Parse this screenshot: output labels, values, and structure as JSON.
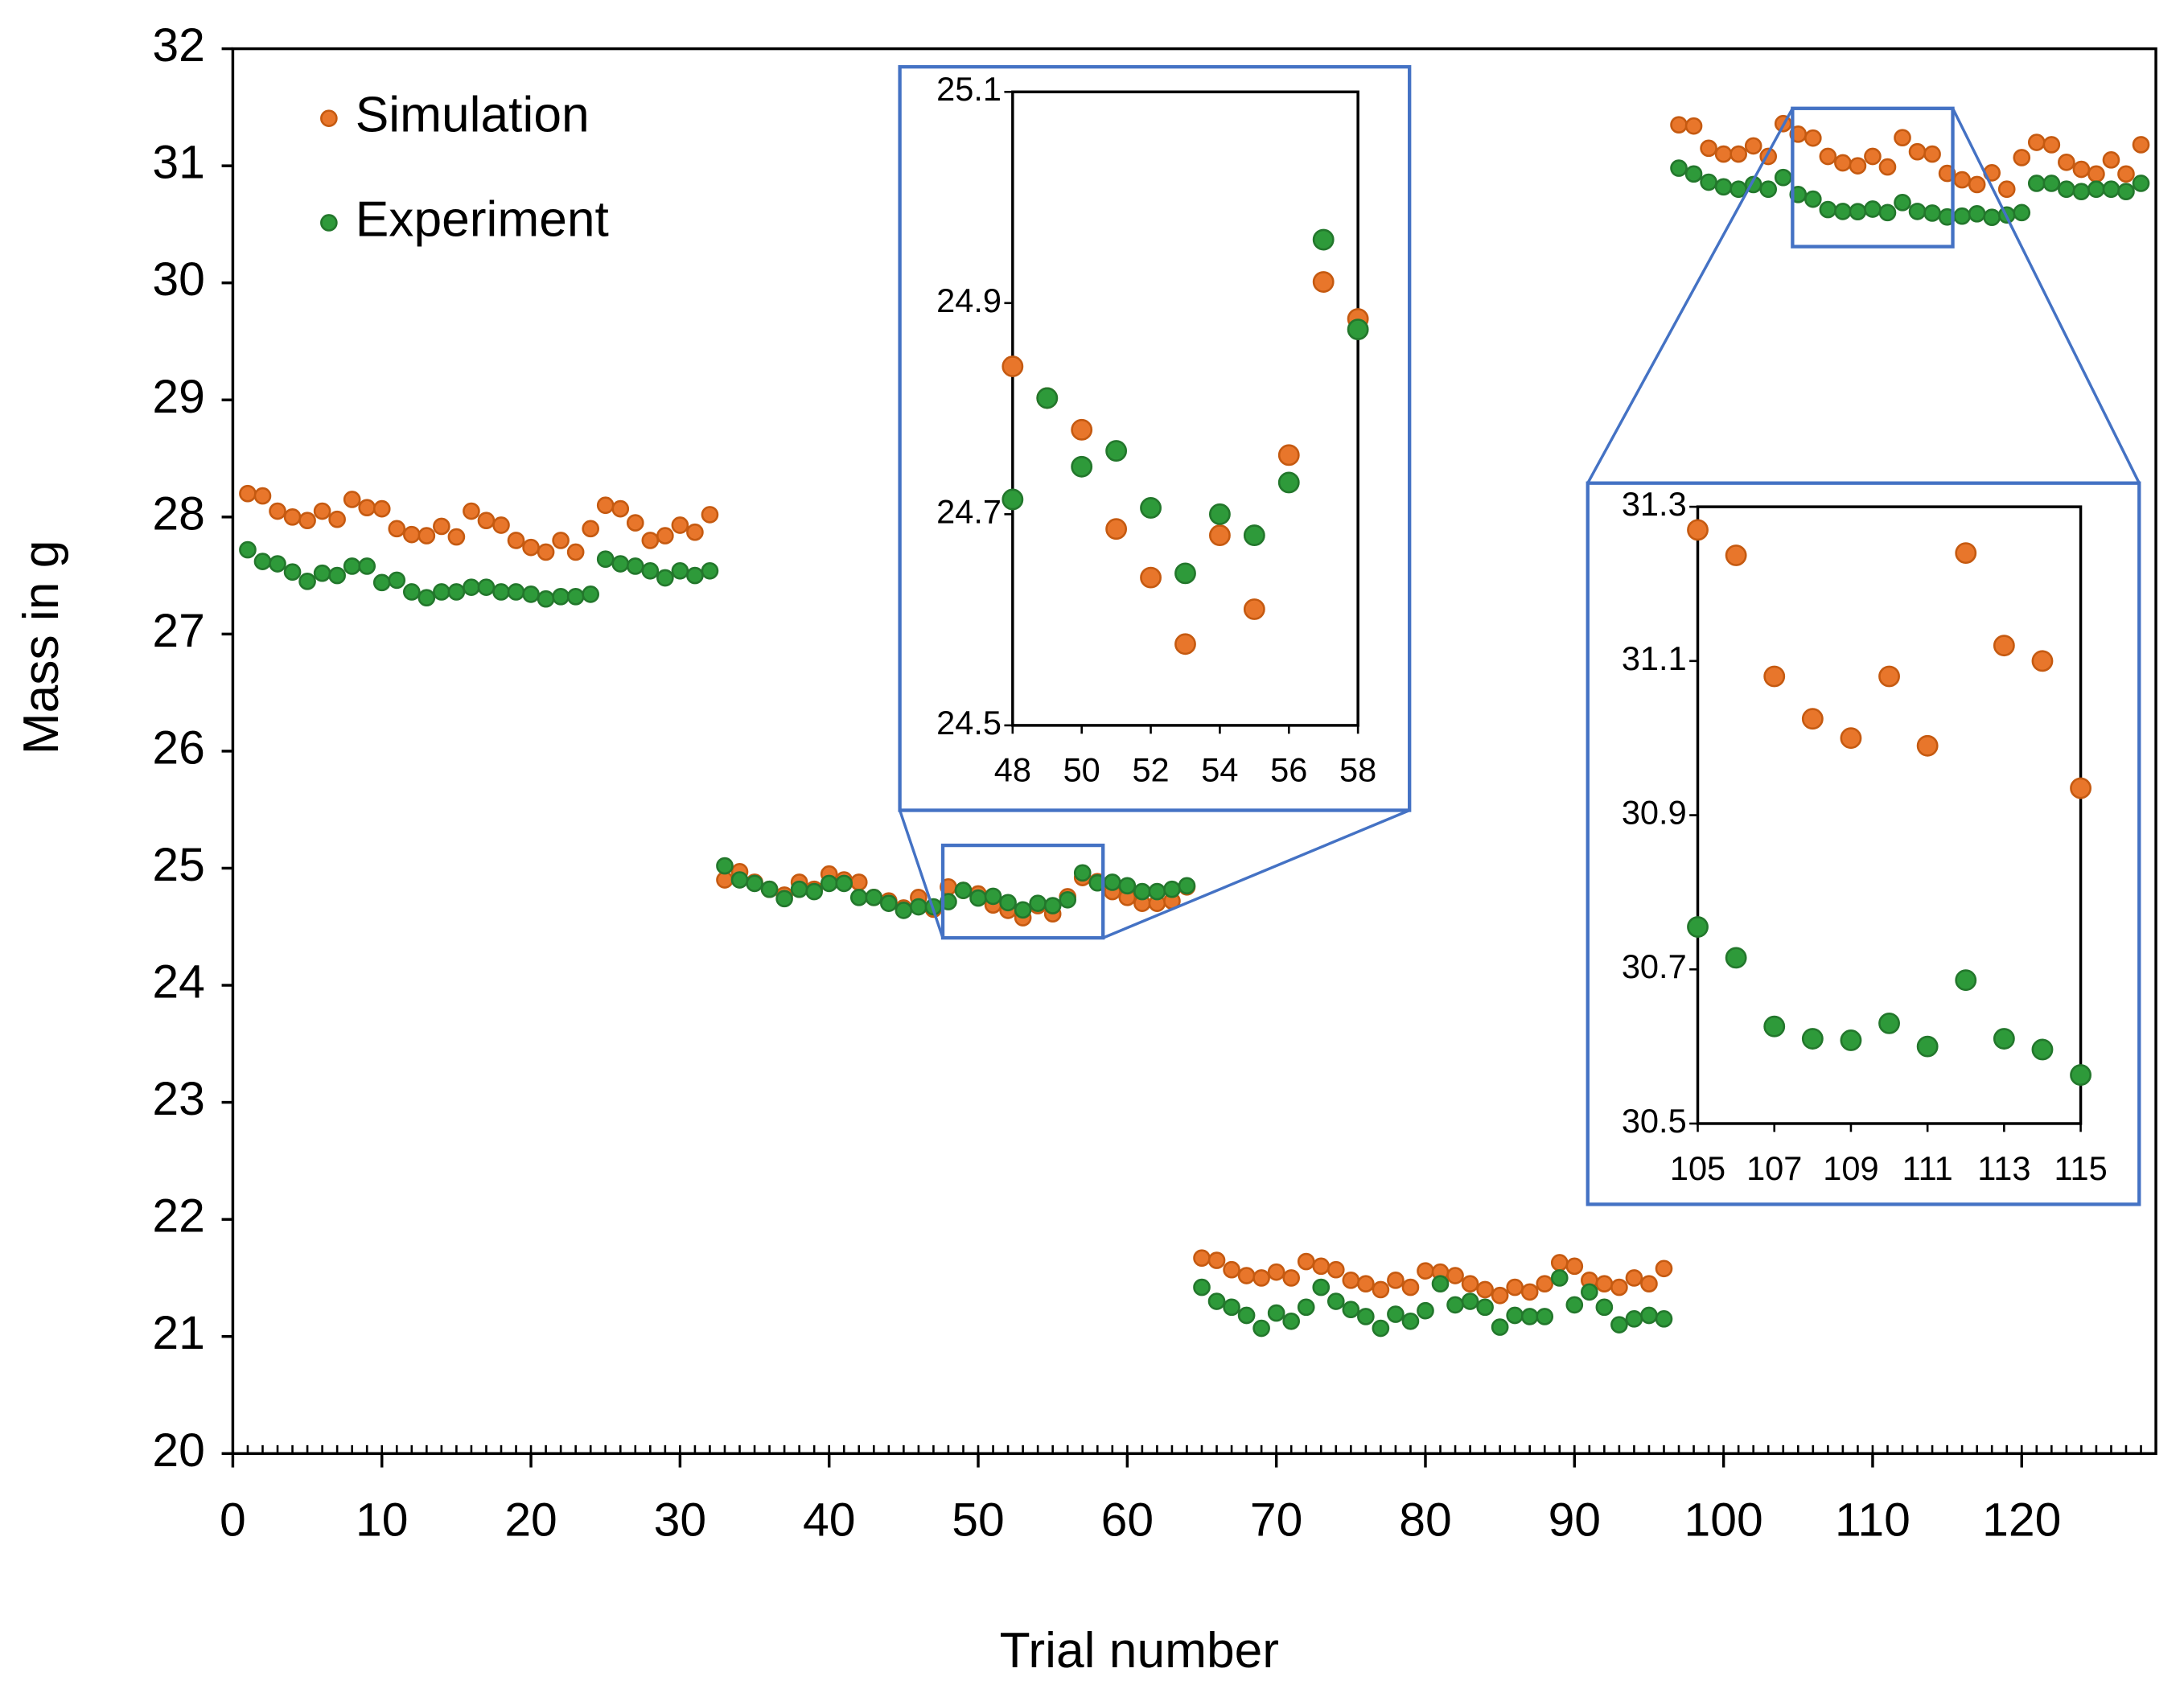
{
  "chart_data": {
    "type": "scatter",
    "xlabel": "Trial number",
    "ylabel": "Mass in g",
    "xlim": [
      0,
      129
    ],
    "ylim": [
      20,
      32
    ],
    "xticks": [
      0,
      10,
      20,
      30,
      40,
      50,
      60,
      70,
      80,
      90,
      100,
      110,
      120
    ],
    "yticks": [
      20,
      21,
      22,
      23,
      24,
      25,
      26,
      27,
      28,
      29,
      30,
      31,
      32
    ],
    "xminor_step": 1,
    "legend": "upper left",
    "x": [
      1,
      2,
      3,
      4,
      5,
      6,
      7,
      8,
      9,
      10,
      11,
      12,
      13,
      14,
      15,
      16,
      17,
      18,
      19,
      20,
      21,
      22,
      23,
      24,
      25,
      26,
      27,
      28,
      29,
      30,
      31,
      32,
      33,
      34,
      35,
      36,
      37,
      38,
      39,
      40,
      41,
      42,
      43,
      44,
      45,
      46,
      47,
      48,
      49,
      50,
      51,
      52,
      53,
      54,
      55,
      56,
      57,
      58,
      59,
      60,
      61,
      62,
      63,
      64,
      65,
      66,
      67,
      68,
      69,
      70,
      71,
      72,
      73,
      74,
      75,
      76,
      77,
      78,
      79,
      80,
      81,
      82,
      83,
      84,
      85,
      86,
      87,
      88,
      89,
      90,
      91,
      92,
      93,
      94,
      95,
      96,
      97,
      98,
      99,
      100,
      101,
      102,
      103,
      104,
      105,
      106,
      107,
      108,
      109,
      110,
      111,
      112,
      113,
      114,
      115,
      116,
      117,
      118,
      119,
      120,
      121,
      122,
      123,
      124,
      125,
      126,
      127,
      128
    ],
    "series": [
      {
        "name": "Simulation",
        "color": "#e8762b",
        "values": [
          28.2,
          28.18,
          28.05,
          28.0,
          27.97,
          28.05,
          27.98,
          28.15,
          28.08,
          28.07,
          27.9,
          27.85,
          27.84,
          27.92,
          27.83,
          28.05,
          27.97,
          27.93,
          27.8,
          27.74,
          27.7,
          27.8,
          27.7,
          27.9,
          28.1,
          28.07,
          27.95,
          27.8,
          27.84,
          27.93,
          27.87,
          28.02,
          24.9,
          24.97,
          24.88,
          24.82,
          24.77,
          24.88,
          24.82,
          24.95,
          24.9,
          24.88,
          24.75,
          24.72,
          24.66,
          24.75,
          24.65,
          24.84,
          24.81,
          24.78,
          24.686,
          24.64,
          24.577,
          24.68,
          24.61,
          24.756,
          24.92,
          24.885,
          24.8,
          24.75,
          24.7,
          24.7,
          24.72,
          24.84,
          21.67,
          21.65,
          21.57,
          21.52,
          21.5,
          21.55,
          21.5,
          21.64,
          21.6,
          21.57,
          21.48,
          21.45,
          21.4,
          21.48,
          21.42,
          21.56,
          21.55,
          21.52,
          21.45,
          21.4,
          21.35,
          21.42,
          21.38,
          21.45,
          21.63,
          21.6,
          21.48,
          21.45,
          21.42,
          21.5,
          21.45,
          21.58,
          31.35,
          31.34,
          31.15,
          31.1,
          31.1,
          31.17,
          31.08,
          31.36,
          31.27,
          31.237,
          31.08,
          31.025,
          31.0,
          31.08,
          30.99,
          31.24,
          31.12,
          31.1,
          30.935,
          30.88,
          30.84,
          30.94,
          30.8,
          31.07,
          31.2,
          31.18,
          31.03,
          30.97,
          30.93,
          31.05,
          30.93,
          31.18
        ]
      },
      {
        "name": "Experiment",
        "color": "#2e9a3a",
        "values": [
          27.72,
          27.62,
          27.6,
          27.53,
          27.45,
          27.52,
          27.5,
          27.58,
          27.58,
          27.44,
          27.46,
          27.36,
          27.31,
          27.36,
          27.36,
          27.4,
          27.4,
          27.36,
          27.36,
          27.34,
          27.3,
          27.32,
          27.32,
          27.34,
          27.64,
          27.6,
          27.58,
          27.54,
          27.48,
          27.54,
          27.5,
          27.54,
          25.02,
          24.9,
          24.87,
          24.82,
          24.74,
          24.82,
          24.8,
          24.87,
          24.87,
          24.75,
          24.75,
          24.7,
          24.64,
          24.67,
          24.67,
          24.714,
          24.81,
          24.745,
          24.76,
          24.706,
          24.644,
          24.7,
          24.68,
          24.73,
          24.96,
          24.875,
          24.88,
          24.85,
          24.8,
          24.8,
          24.82,
          24.85,
          21.42,
          21.3,
          21.25,
          21.18,
          21.07,
          21.2,
          21.13,
          21.25,
          21.42,
          21.3,
          21.23,
          21.17,
          21.07,
          21.19,
          21.13,
          21.22,
          21.45,
          21.27,
          21.3,
          21.25,
          21.08,
          21.18,
          21.17,
          21.17,
          21.5,
          21.27,
          21.38,
          21.25,
          21.1,
          21.15,
          21.18,
          21.15,
          30.98,
          30.93,
          30.86,
          30.82,
          30.8,
          30.84,
          30.8,
          30.9,
          30.755,
          30.715,
          30.626,
          30.61,
          30.608,
          30.63,
          30.6,
          30.686,
          30.61,
          30.596,
          30.563,
          30.57,
          30.59,
          30.56,
          30.58,
          30.6,
          30.85,
          30.85,
          30.8,
          30.78,
          30.8,
          30.8,
          30.78,
          30.85
        ]
      }
    ],
    "insets": [
      {
        "xlim": [
          48,
          58
        ],
        "ylim": [
          24.5,
          25.1
        ],
        "xticks": [
          48,
          50,
          52,
          54,
          56,
          58
        ],
        "yticks": [
          24.5,
          24.7,
          24.9,
          25.1
        ]
      },
      {
        "xlim": [
          105,
          115
        ],
        "ylim": [
          30.5,
          31.3
        ],
        "xticks": [
          105,
          107,
          109,
          111,
          113,
          115
        ],
        "yticks": [
          30.5,
          30.7,
          30.9,
          31.1,
          31.3
        ]
      }
    ]
  }
}
